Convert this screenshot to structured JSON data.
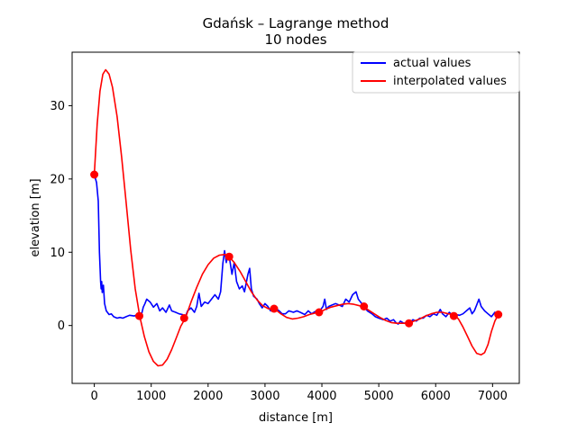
{
  "chart_data": {
    "type": "line",
    "title": "Gdańsk – Lagrange method",
    "subtitle": "10 nodes",
    "xlabel": "distance [m]",
    "ylabel": "elevation [m]",
    "xlim": [
      -390,
      7470
    ],
    "ylim": [
      -7.9,
      37.3
    ],
    "x_ticks": [
      0,
      1000,
      2000,
      3000,
      4000,
      5000,
      6000,
      7000
    ],
    "y_ticks": [
      0,
      10,
      20,
      30
    ],
    "grid": false,
    "legend_position": "top-right",
    "series": [
      {
        "name": "actual values",
        "color": "#0000ff",
        "points": [
          [
            0,
            20.6
          ],
          [
            40,
            19.5
          ],
          [
            70,
            17.0
          ],
          [
            90,
            10.0
          ],
          [
            110,
            6.0
          ],
          [
            120,
            5.0
          ],
          [
            130,
            6.0
          ],
          [
            140,
            4.5
          ],
          [
            160,
            5.5
          ],
          [
            180,
            3.0
          ],
          [
            210,
            2.0
          ],
          [
            260,
            1.5
          ],
          [
            300,
            1.6
          ],
          [
            340,
            1.2
          ],
          [
            400,
            1.0
          ],
          [
            450,
            1.1
          ],
          [
            500,
            1.0
          ],
          [
            560,
            1.2
          ],
          [
            620,
            1.4
          ],
          [
            700,
            1.3
          ],
          [
            760,
            1.5
          ],
          [
            820,
            1.2
          ],
          [
            860,
            2.5
          ],
          [
            890,
            3.0
          ],
          [
            920,
            3.6
          ],
          [
            980,
            3.2
          ],
          [
            1040,
            2.5
          ],
          [
            1100,
            3.0
          ],
          [
            1150,
            2.0
          ],
          [
            1200,
            2.4
          ],
          [
            1260,
            1.8
          ],
          [
            1320,
            2.8
          ],
          [
            1360,
            2.0
          ],
          [
            1430,
            1.8
          ],
          [
            1490,
            1.6
          ],
          [
            1550,
            1.5
          ],
          [
            1600,
            1.2
          ],
          [
            1640,
            2.0
          ],
          [
            1700,
            2.4
          ],
          [
            1760,
            1.8
          ],
          [
            1800,
            2.6
          ],
          [
            1840,
            4.4
          ],
          [
            1880,
            2.6
          ],
          [
            1940,
            3.2
          ],
          [
            2000,
            3.0
          ],
          [
            2060,
            3.6
          ],
          [
            2120,
            4.2
          ],
          [
            2180,
            3.6
          ],
          [
            2220,
            4.6
          ],
          [
            2260,
            8.5
          ],
          [
            2290,
            10.2
          ],
          [
            2320,
            8.6
          ],
          [
            2350,
            9.8
          ],
          [
            2380,
            9.0
          ],
          [
            2420,
            7.0
          ],
          [
            2460,
            8.6
          ],
          [
            2500,
            6.0
          ],
          [
            2550,
            5.0
          ],
          [
            2600,
            5.4
          ],
          [
            2640,
            4.6
          ],
          [
            2700,
            7.0
          ],
          [
            2730,
            7.8
          ],
          [
            2760,
            5.0
          ],
          [
            2800,
            4.0
          ],
          [
            2860,
            3.6
          ],
          [
            2900,
            3.0
          ],
          [
            2950,
            2.4
          ],
          [
            3000,
            3.0
          ],
          [
            3050,
            2.6
          ],
          [
            3100,
            2.0
          ],
          [
            3170,
            2.4
          ],
          [
            3250,
            2.0
          ],
          [
            3300,
            1.6
          ],
          [
            3360,
            1.6
          ],
          [
            3420,
            2.0
          ],
          [
            3500,
            1.8
          ],
          [
            3560,
            2.0
          ],
          [
            3620,
            1.8
          ],
          [
            3700,
            1.5
          ],
          [
            3760,
            2.0
          ],
          [
            3820,
            1.6
          ],
          [
            3880,
            1.9
          ],
          [
            3940,
            1.8
          ],
          [
            3980,
            2.2
          ],
          [
            4020,
            2.6
          ],
          [
            4050,
            3.6
          ],
          [
            4080,
            2.2
          ],
          [
            4120,
            2.6
          ],
          [
            4180,
            2.8
          ],
          [
            4240,
            3.0
          ],
          [
            4300,
            2.8
          ],
          [
            4360,
            2.6
          ],
          [
            4420,
            3.6
          ],
          [
            4480,
            3.2
          ],
          [
            4540,
            4.2
          ],
          [
            4600,
            4.6
          ],
          [
            4640,
            3.6
          ],
          [
            4700,
            3.0
          ],
          [
            4740,
            2.6
          ],
          [
            4800,
            2.0
          ],
          [
            4880,
            1.6
          ],
          [
            4940,
            1.2
          ],
          [
            5000,
            1.0
          ],
          [
            5080,
            0.8
          ],
          [
            5140,
            1.0
          ],
          [
            5200,
            0.6
          ],
          [
            5260,
            0.8
          ],
          [
            5300,
            0.4
          ],
          [
            5340,
            0.2
          ],
          [
            5380,
            0.6
          ],
          [
            5440,
            0.3
          ],
          [
            5500,
            0.4
          ],
          [
            5540,
            0.3
          ],
          [
            5600,
            0.8
          ],
          [
            5660,
            0.6
          ],
          [
            5720,
            1.0
          ],
          [
            5780,
            1.0
          ],
          [
            5840,
            1.4
          ],
          [
            5900,
            1.2
          ],
          [
            5960,
            1.6
          ],
          [
            6020,
            1.4
          ],
          [
            6080,
            2.2
          ],
          [
            6120,
            1.6
          ],
          [
            6180,
            1.2
          ],
          [
            6240,
            1.8
          ],
          [
            6300,
            1.3
          ],
          [
            6360,
            1.5
          ],
          [
            6420,
            1.4
          ],
          [
            6480,
            1.6
          ],
          [
            6540,
            2.0
          ],
          [
            6600,
            2.4
          ],
          [
            6640,
            1.6
          ],
          [
            6680,
            2.0
          ],
          [
            6720,
            2.8
          ],
          [
            6760,
            3.6
          ],
          [
            6800,
            2.6
          ],
          [
            6860,
            2.0
          ],
          [
            6920,
            1.6
          ],
          [
            6980,
            1.2
          ],
          [
            7040,
            1.8
          ],
          [
            7100,
            1.5
          ]
        ]
      },
      {
        "name": "interpolated values",
        "color": "#ff0000",
        "points": [
          [
            0,
            20.6
          ],
          [
            50,
            27.5
          ],
          [
            100,
            32.0
          ],
          [
            150,
            34.3
          ],
          [
            200,
            34.9
          ],
          [
            260,
            34.3
          ],
          [
            320,
            32.5
          ],
          [
            400,
            28.5
          ],
          [
            480,
            23.0
          ],
          [
            560,
            16.8
          ],
          [
            640,
            10.3
          ],
          [
            720,
            5.0
          ],
          [
            800,
            1.2
          ],
          [
            880,
            -1.5
          ],
          [
            960,
            -3.6
          ],
          [
            1040,
            -4.9
          ],
          [
            1120,
            -5.5
          ],
          [
            1200,
            -5.4
          ],
          [
            1280,
            -4.6
          ],
          [
            1360,
            -3.3
          ],
          [
            1440,
            -1.7
          ],
          [
            1520,
            -0.1
          ],
          [
            1600,
            1.0
          ],
          [
            1700,
            3.2
          ],
          [
            1800,
            5.2
          ],
          [
            1900,
            7.0
          ],
          [
            2000,
            8.3
          ],
          [
            2100,
            9.2
          ],
          [
            2200,
            9.6
          ],
          [
            2300,
            9.7
          ],
          [
            2380,
            9.3
          ],
          [
            2460,
            8.6
          ],
          [
            2560,
            7.4
          ],
          [
            2660,
            6.0
          ],
          [
            2760,
            4.6
          ],
          [
            2860,
            3.5
          ],
          [
            2960,
            2.7
          ],
          [
            3060,
            2.3
          ],
          [
            3180,
            2.2
          ],
          [
            3280,
            1.6
          ],
          [
            3380,
            1.1
          ],
          [
            3480,
            0.9
          ],
          [
            3580,
            1.0
          ],
          [
            3680,
            1.2
          ],
          [
            3780,
            1.5
          ],
          [
            3880,
            1.7
          ],
          [
            3960,
            1.8
          ],
          [
            4060,
            2.2
          ],
          [
            4160,
            2.5
          ],
          [
            4260,
            2.7
          ],
          [
            4360,
            2.9
          ],
          [
            4460,
            3.0
          ],
          [
            4560,
            2.9
          ],
          [
            4660,
            2.7
          ],
          [
            4740,
            2.5
          ],
          [
            4820,
            2.1
          ],
          [
            4920,
            1.6
          ],
          [
            5020,
            1.1
          ],
          [
            5120,
            0.7
          ],
          [
            5220,
            0.4
          ],
          [
            5320,
            0.3
          ],
          [
            5420,
            0.3
          ],
          [
            5520,
            0.3
          ],
          [
            5620,
            0.6
          ],
          [
            5720,
            0.9
          ],
          [
            5820,
            1.3
          ],
          [
            5920,
            1.6
          ],
          [
            6020,
            1.8
          ],
          [
            6120,
            1.8
          ],
          [
            6220,
            1.6
          ],
          [
            6320,
            1.5
          ],
          [
            6400,
            0.9
          ],
          [
            6480,
            -0.2
          ],
          [
            6560,
            -1.5
          ],
          [
            6640,
            -2.8
          ],
          [
            6720,
            -3.8
          ],
          [
            6800,
            -4.0
          ],
          [
            6860,
            -3.7
          ],
          [
            6920,
            -2.6
          ],
          [
            6980,
            -0.8
          ],
          [
            7040,
            0.6
          ],
          [
            7100,
            1.5
          ]
        ]
      }
    ],
    "nodes": [
      [
        0,
        20.6
      ],
      [
        790,
        1.3
      ],
      [
        1580,
        1.0
      ],
      [
        2370,
        9.4
      ],
      [
        3160,
        2.3
      ],
      [
        3950,
        1.8
      ],
      [
        4740,
        2.6
      ],
      [
        5530,
        0.3
      ],
      [
        6320,
        1.3
      ],
      [
        7100,
        1.5
      ]
    ],
    "nodes_color": "#ff0000"
  }
}
